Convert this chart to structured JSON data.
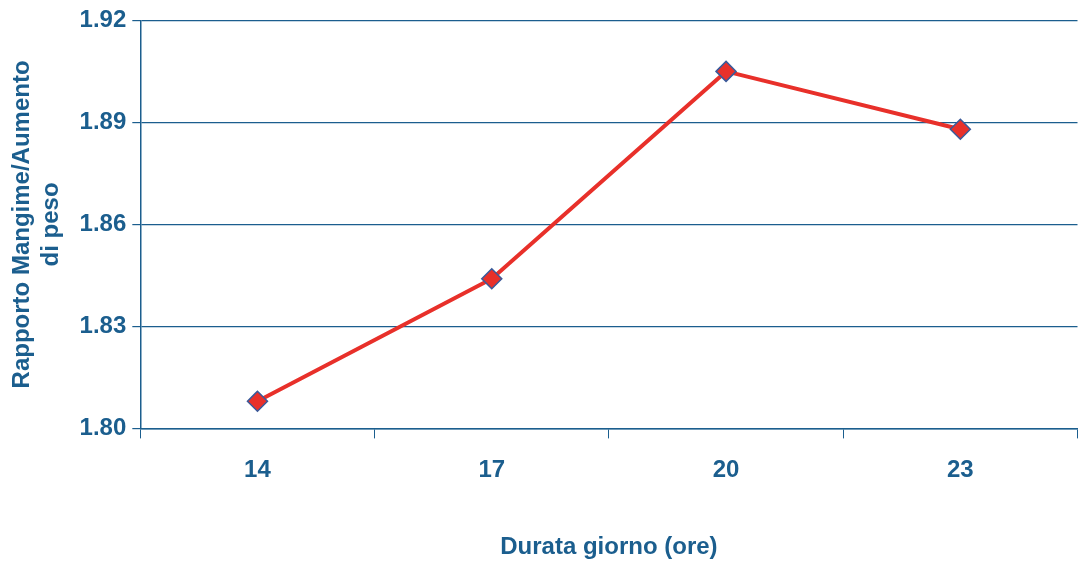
{
  "chart_data": {
    "type": "line",
    "xlabel": "Durata giorno (ore)",
    "ylabel": "Rapporto Mangime/Aumento di peso",
    "categories": [
      "14",
      "17",
      "20",
      "23"
    ],
    "series": [
      {
        "color": "#e8302a",
        "values": [
          1.808,
          1.844,
          1.905,
          1.888
        ]
      }
    ],
    "ylim": [
      1.8,
      1.92
    ],
    "yticks": [
      {
        "value": 1.8,
        "label": "1.80"
      },
      {
        "value": 1.83,
        "label": "1.83"
      },
      {
        "value": 1.86,
        "label": "1.86"
      },
      {
        "value": 1.89,
        "label": "1.89"
      },
      {
        "value": 1.92,
        "label": "1.92"
      }
    ],
    "grid": "y",
    "legend": false,
    "marker": "diamond",
    "line_style": "solid"
  }
}
